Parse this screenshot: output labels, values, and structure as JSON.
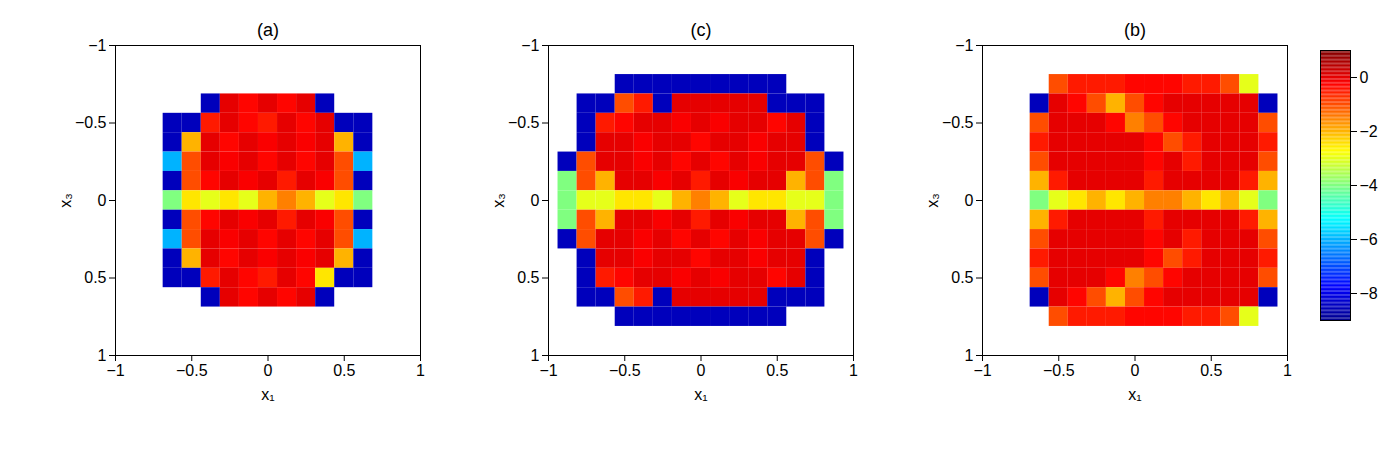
{
  "chart_data": {
    "type": "heatmap",
    "xlabel": "x₁",
    "ylabel": "x₃",
    "xlim": [
      -1,
      1
    ],
    "ylim": [
      -1,
      1
    ],
    "xticks": [
      {
        "value": -1,
        "label": "−1"
      },
      {
        "value": -0.5,
        "label": "−0.5"
      },
      0,
      0.5,
      1
    ],
    "yticks": [
      {
        "value": -1,
        "label": "−1"
      },
      {
        "value": -0.5,
        "label": "−0.5"
      },
      0,
      0.5,
      1
    ],
    "colorbar": {
      "range": [
        -9,
        1
      ],
      "ticks": [
        0,
        {
          "value": -2,
          "label": "−2"
        },
        {
          "value": -4,
          "label": "−4"
        },
        {
          "value": -6,
          "label": "−6"
        },
        {
          "value": -8,
          "label": "−8"
        }
      ]
    },
    "x": [
      -1,
      -0.875,
      -0.75,
      -0.625,
      -0.5,
      -0.375,
      -0.25,
      -0.125,
      0,
      0.125,
      0.25,
      0.375,
      0.5,
      0.625,
      0.75,
      0.875,
      1
    ],
    "y": [
      -1,
      -0.875,
      -0.75,
      -0.625,
      -0.5,
      -0.375,
      -0.25,
      -0.125,
      0,
      0.125,
      0.25,
      0.375,
      0.5,
      0.625,
      0.75,
      0.875,
      1
    ],
    "panels": [
      {
        "title": "(a)",
        "values": [
          [
            null,
            null,
            null,
            null,
            null,
            null,
            null,
            null,
            null,
            null,
            null,
            null,
            null,
            null,
            null,
            null,
            null
          ],
          [
            null,
            null,
            null,
            null,
            null,
            null,
            null,
            null,
            null,
            null,
            null,
            null,
            null,
            null,
            null,
            null,
            null
          ],
          [
            null,
            null,
            null,
            null,
            null,
            null,
            null,
            null,
            null,
            null,
            null,
            null,
            null,
            null,
            null,
            null,
            null
          ],
          [
            null,
            null,
            null,
            null,
            null,
            -8.5,
            0,
            -0.3,
            0,
            -0.3,
            0,
            -8.5,
            null,
            null,
            null,
            null,
            null
          ],
          [
            null,
            null,
            null,
            -8.5,
            -8.5,
            -0.5,
            0,
            -0.3,
            -0.5,
            0,
            -0.3,
            0,
            -8.5,
            -8.5,
            null,
            null,
            null
          ],
          [
            null,
            null,
            null,
            -8.5,
            -2,
            0,
            -0.3,
            0,
            -0.2,
            0,
            -0.2,
            0,
            -2,
            -8.5,
            null,
            null,
            null
          ],
          [
            null,
            null,
            null,
            -6,
            -1,
            0,
            -0.2,
            0,
            -0.3,
            0,
            -0.3,
            0,
            -1,
            -6,
            null,
            null,
            null
          ],
          [
            null,
            null,
            null,
            -8.5,
            -1,
            -0.3,
            0,
            -0.2,
            0,
            -0.5,
            0,
            -0.2,
            -1,
            -8.5,
            null,
            null,
            null
          ],
          [
            null,
            null,
            null,
            -4,
            -2.5,
            -3,
            -2.5,
            -3,
            -2,
            -1.5,
            -2,
            -3,
            -2.5,
            -4,
            null,
            null,
            null
          ],
          [
            null,
            null,
            null,
            -8.5,
            -1,
            -0.3,
            0,
            -0.2,
            0,
            -0.5,
            0,
            -0.2,
            -1,
            -8.5,
            null,
            null,
            null
          ],
          [
            null,
            null,
            null,
            -6,
            -1,
            0,
            -0.2,
            0,
            -0.3,
            0,
            -0.3,
            0,
            -1,
            -6,
            null,
            null,
            null
          ],
          [
            null,
            null,
            null,
            -8.5,
            -2,
            0,
            -0.3,
            0,
            -0.2,
            0,
            -0.2,
            0,
            -2,
            -8.5,
            null,
            null,
            null
          ],
          [
            null,
            null,
            null,
            -8.5,
            -8.5,
            -0.5,
            0,
            -0.3,
            -0.5,
            0,
            -0.3,
            -2.5,
            -8.5,
            -8.5,
            null,
            null,
            null
          ],
          [
            null,
            null,
            null,
            null,
            null,
            -8.5,
            0,
            -0.3,
            0,
            -0.3,
            0,
            -8.5,
            null,
            null,
            null,
            null,
            null
          ],
          [
            null,
            null,
            null,
            null,
            null,
            null,
            null,
            null,
            null,
            null,
            null,
            null,
            null,
            null,
            null,
            null,
            null
          ],
          [
            null,
            null,
            null,
            null,
            null,
            null,
            null,
            null,
            null,
            null,
            null,
            null,
            null,
            null,
            null,
            null,
            null
          ],
          [
            null,
            null,
            null,
            null,
            null,
            null,
            null,
            null,
            null,
            null,
            null,
            null,
            null,
            null,
            null,
            null,
            null
          ]
        ]
      },
      {
        "title": "(c)",
        "values": [
          [
            null,
            null,
            null,
            null,
            null,
            null,
            null,
            null,
            null,
            null,
            null,
            null,
            null,
            null,
            null,
            null,
            null
          ],
          [
            null,
            null,
            null,
            null,
            null,
            null,
            null,
            null,
            null,
            null,
            null,
            null,
            null,
            null,
            null,
            null,
            null
          ],
          [
            null,
            null,
            null,
            null,
            -8.5,
            -8.5,
            -8.5,
            -8.5,
            -8.5,
            -8.5,
            -8.5,
            -8.5,
            -8.5,
            null,
            null,
            null,
            null
          ],
          [
            null,
            null,
            -8.5,
            -8.5,
            -1,
            -0.5,
            -8.5,
            0,
            0,
            0,
            0,
            0,
            -8.5,
            -8.5,
            -8.5,
            null,
            null
          ],
          [
            null,
            null,
            -8.5,
            -0.5,
            -0.3,
            0,
            0,
            -0.2,
            0,
            -0.2,
            0,
            0,
            -0.3,
            0,
            -8.5,
            null,
            null
          ],
          [
            null,
            null,
            -8.5,
            0,
            0,
            -0.2,
            0,
            0,
            -0.3,
            0,
            0,
            -0.2,
            0,
            0,
            -8.5,
            null,
            null
          ],
          [
            null,
            -8.5,
            -1,
            0,
            0,
            -0.2,
            0,
            -0.3,
            0,
            -0.3,
            0,
            -0.2,
            0,
            0,
            -1,
            -8.5,
            null
          ],
          [
            null,
            -4,
            -1,
            -2,
            0,
            0,
            -0.2,
            0,
            -0.5,
            0,
            -0.2,
            0,
            0,
            -2,
            -1,
            -4,
            null
          ],
          [
            null,
            -4,
            -3,
            -3,
            -2.5,
            -2.5,
            -3,
            -2,
            -1.5,
            -2,
            -3,
            -2.5,
            -2.5,
            -3,
            -3,
            -4,
            null
          ],
          [
            null,
            -4,
            -1,
            -2,
            0,
            0,
            -0.2,
            0,
            -0.5,
            0,
            -0.2,
            0,
            0,
            -2,
            -1,
            -4,
            null
          ],
          [
            null,
            -8.5,
            -1,
            0,
            0,
            -0.2,
            0,
            -0.3,
            0,
            -0.3,
            0,
            -0.2,
            0,
            0,
            -1,
            -8.5,
            null
          ],
          [
            null,
            null,
            -8.5,
            0,
            0,
            -0.2,
            0,
            0,
            -0.3,
            0,
            0,
            -0.2,
            0,
            0,
            -8.5,
            null,
            null
          ],
          [
            null,
            null,
            -8.5,
            -0.5,
            -0.3,
            0,
            0,
            -0.2,
            0,
            -0.2,
            0,
            0,
            -0.3,
            0,
            -8.5,
            null,
            null
          ],
          [
            null,
            null,
            -8.5,
            -8.5,
            -1,
            -0.5,
            -8.5,
            0,
            0,
            0,
            0,
            0,
            -8.5,
            -8.5,
            -8.5,
            null,
            null
          ],
          [
            null,
            null,
            null,
            null,
            -8.5,
            -8.5,
            -8.5,
            -8.5,
            -8.5,
            -8.5,
            -8.5,
            -8.5,
            -8.5,
            null,
            null,
            null,
            null
          ],
          [
            null,
            null,
            null,
            null,
            null,
            null,
            null,
            null,
            null,
            null,
            null,
            null,
            null,
            null,
            null,
            null,
            null
          ],
          [
            null,
            null,
            null,
            null,
            null,
            null,
            null,
            null,
            null,
            null,
            null,
            null,
            null,
            null,
            null,
            null,
            null
          ]
        ]
      },
      {
        "title": "(b)",
        "values": [
          [
            null,
            null,
            null,
            null,
            null,
            null,
            null,
            null,
            null,
            null,
            null,
            null,
            null,
            null,
            null,
            null,
            null
          ],
          [
            null,
            null,
            null,
            null,
            null,
            null,
            null,
            null,
            null,
            null,
            null,
            null,
            null,
            null,
            null,
            null,
            null
          ],
          [
            null,
            null,
            null,
            null,
            -1,
            -0.5,
            -0.5,
            -0.5,
            -0.3,
            -0.3,
            -0.3,
            -0.5,
            -0.5,
            -1,
            -3,
            null,
            null
          ],
          [
            null,
            null,
            null,
            -8.5,
            0,
            -0.3,
            -1,
            -2,
            -1,
            -0.3,
            0,
            0,
            0,
            0,
            0,
            -8.5,
            null
          ],
          [
            null,
            null,
            null,
            -1,
            0,
            0,
            0,
            -0.3,
            -1.5,
            -1,
            -0.3,
            0,
            0,
            0,
            0,
            -1,
            null
          ],
          [
            null,
            null,
            null,
            -0.5,
            0,
            0,
            0,
            0,
            0,
            -0.3,
            -1,
            -0.5,
            0,
            0,
            0,
            -0.5,
            null
          ],
          [
            null,
            null,
            null,
            -1,
            0,
            0,
            0,
            0,
            0,
            -0.3,
            0,
            -0.5,
            0,
            0,
            0,
            -1,
            null
          ],
          [
            null,
            null,
            null,
            -2,
            -0.5,
            0,
            0,
            0,
            0,
            -0.5,
            0,
            0,
            0,
            0,
            -0.5,
            -2,
            null
          ],
          [
            null,
            null,
            null,
            -4,
            -3,
            -2.5,
            -2,
            -2.5,
            -2,
            -1.5,
            -1.5,
            -2,
            -2.5,
            -2,
            -3,
            -4,
            null
          ],
          [
            null,
            null,
            null,
            -2,
            -0.5,
            0,
            0,
            0,
            0,
            -0.5,
            0,
            0,
            0,
            0,
            -0.5,
            -2,
            null
          ],
          [
            null,
            null,
            null,
            -1,
            0,
            0,
            0,
            0,
            0,
            -0.3,
            0,
            -0.5,
            0,
            0,
            0,
            -1,
            null
          ],
          [
            null,
            null,
            null,
            -0.5,
            0,
            0,
            0,
            0,
            0,
            -0.3,
            -1,
            -0.5,
            0,
            0,
            0,
            -0.5,
            null
          ],
          [
            null,
            null,
            null,
            -1,
            0,
            0,
            0,
            -0.3,
            -1.5,
            -1,
            -0.3,
            0,
            0,
            0,
            0,
            -1,
            null
          ],
          [
            null,
            null,
            null,
            -8.5,
            0,
            -0.3,
            -1,
            -2,
            -1,
            -0.3,
            0,
            0,
            0,
            0,
            0,
            -8.5,
            null
          ],
          [
            null,
            null,
            null,
            null,
            -1,
            -0.5,
            -0.5,
            -0.5,
            -0.3,
            -0.3,
            -0.3,
            -0.5,
            -0.5,
            -1,
            -3,
            null,
            null
          ],
          [
            null,
            null,
            null,
            null,
            null,
            null,
            null,
            null,
            null,
            null,
            null,
            null,
            null,
            null,
            null,
            null,
            null
          ],
          [
            null,
            null,
            null,
            null,
            null,
            null,
            null,
            null,
            null,
            null,
            null,
            null,
            null,
            null,
            null,
            null,
            null
          ]
        ]
      }
    ]
  }
}
